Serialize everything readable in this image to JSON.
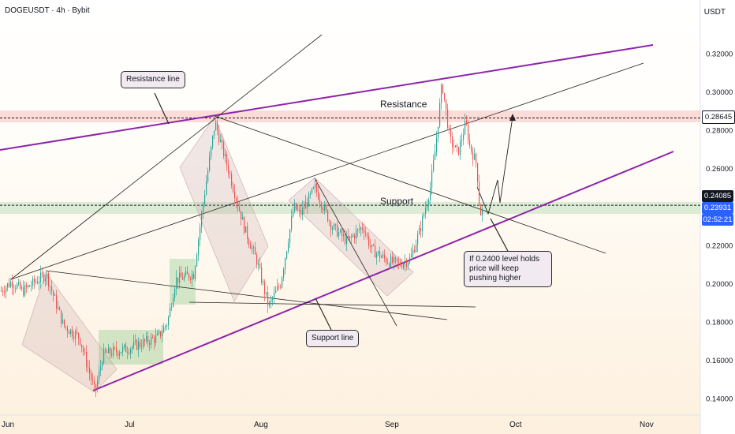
{
  "header": {
    "title": "DOGEUSDT · 4h · Bybit",
    "currency": "USDT"
  },
  "chart_data": {
    "type": "candlestick",
    "symbol": "DOGEUSDT",
    "interval": "4h",
    "exchange": "Bybit",
    "y_axis": {
      "ticks": [
        "0.32000",
        "0.30000",
        "0.28000",
        "0.26000",
        "0.22000",
        "0.20000",
        "0.18000",
        "0.16000",
        "0.14000"
      ],
      "tick_values": [
        0.32,
        0.3,
        0.28,
        0.26,
        0.22,
        0.2,
        0.18,
        0.16,
        0.14
      ]
    },
    "x_axis": {
      "ticks": [
        "Jun",
        "Jul",
        "Aug",
        "Sep",
        "Oct",
        "Nov"
      ]
    },
    "levels": {
      "resistance": {
        "label": "Resistance",
        "price": 0.28645,
        "price_label": "0.28645"
      },
      "support": {
        "label": "Support",
        "price": 0.24085,
        "price_label": "0.24085"
      },
      "current": {
        "price_label": "0.23931",
        "countdown": "02:52:21"
      }
    },
    "annotations": {
      "resistance_line": "Resistance line",
      "support_line": "Support line",
      "note": "If 0.2400 level holds price will keep pushing higher"
    },
    "colors": {
      "up": "#26a69a",
      "down": "#ef5350",
      "channel": "#9c27b0"
    }
  }
}
